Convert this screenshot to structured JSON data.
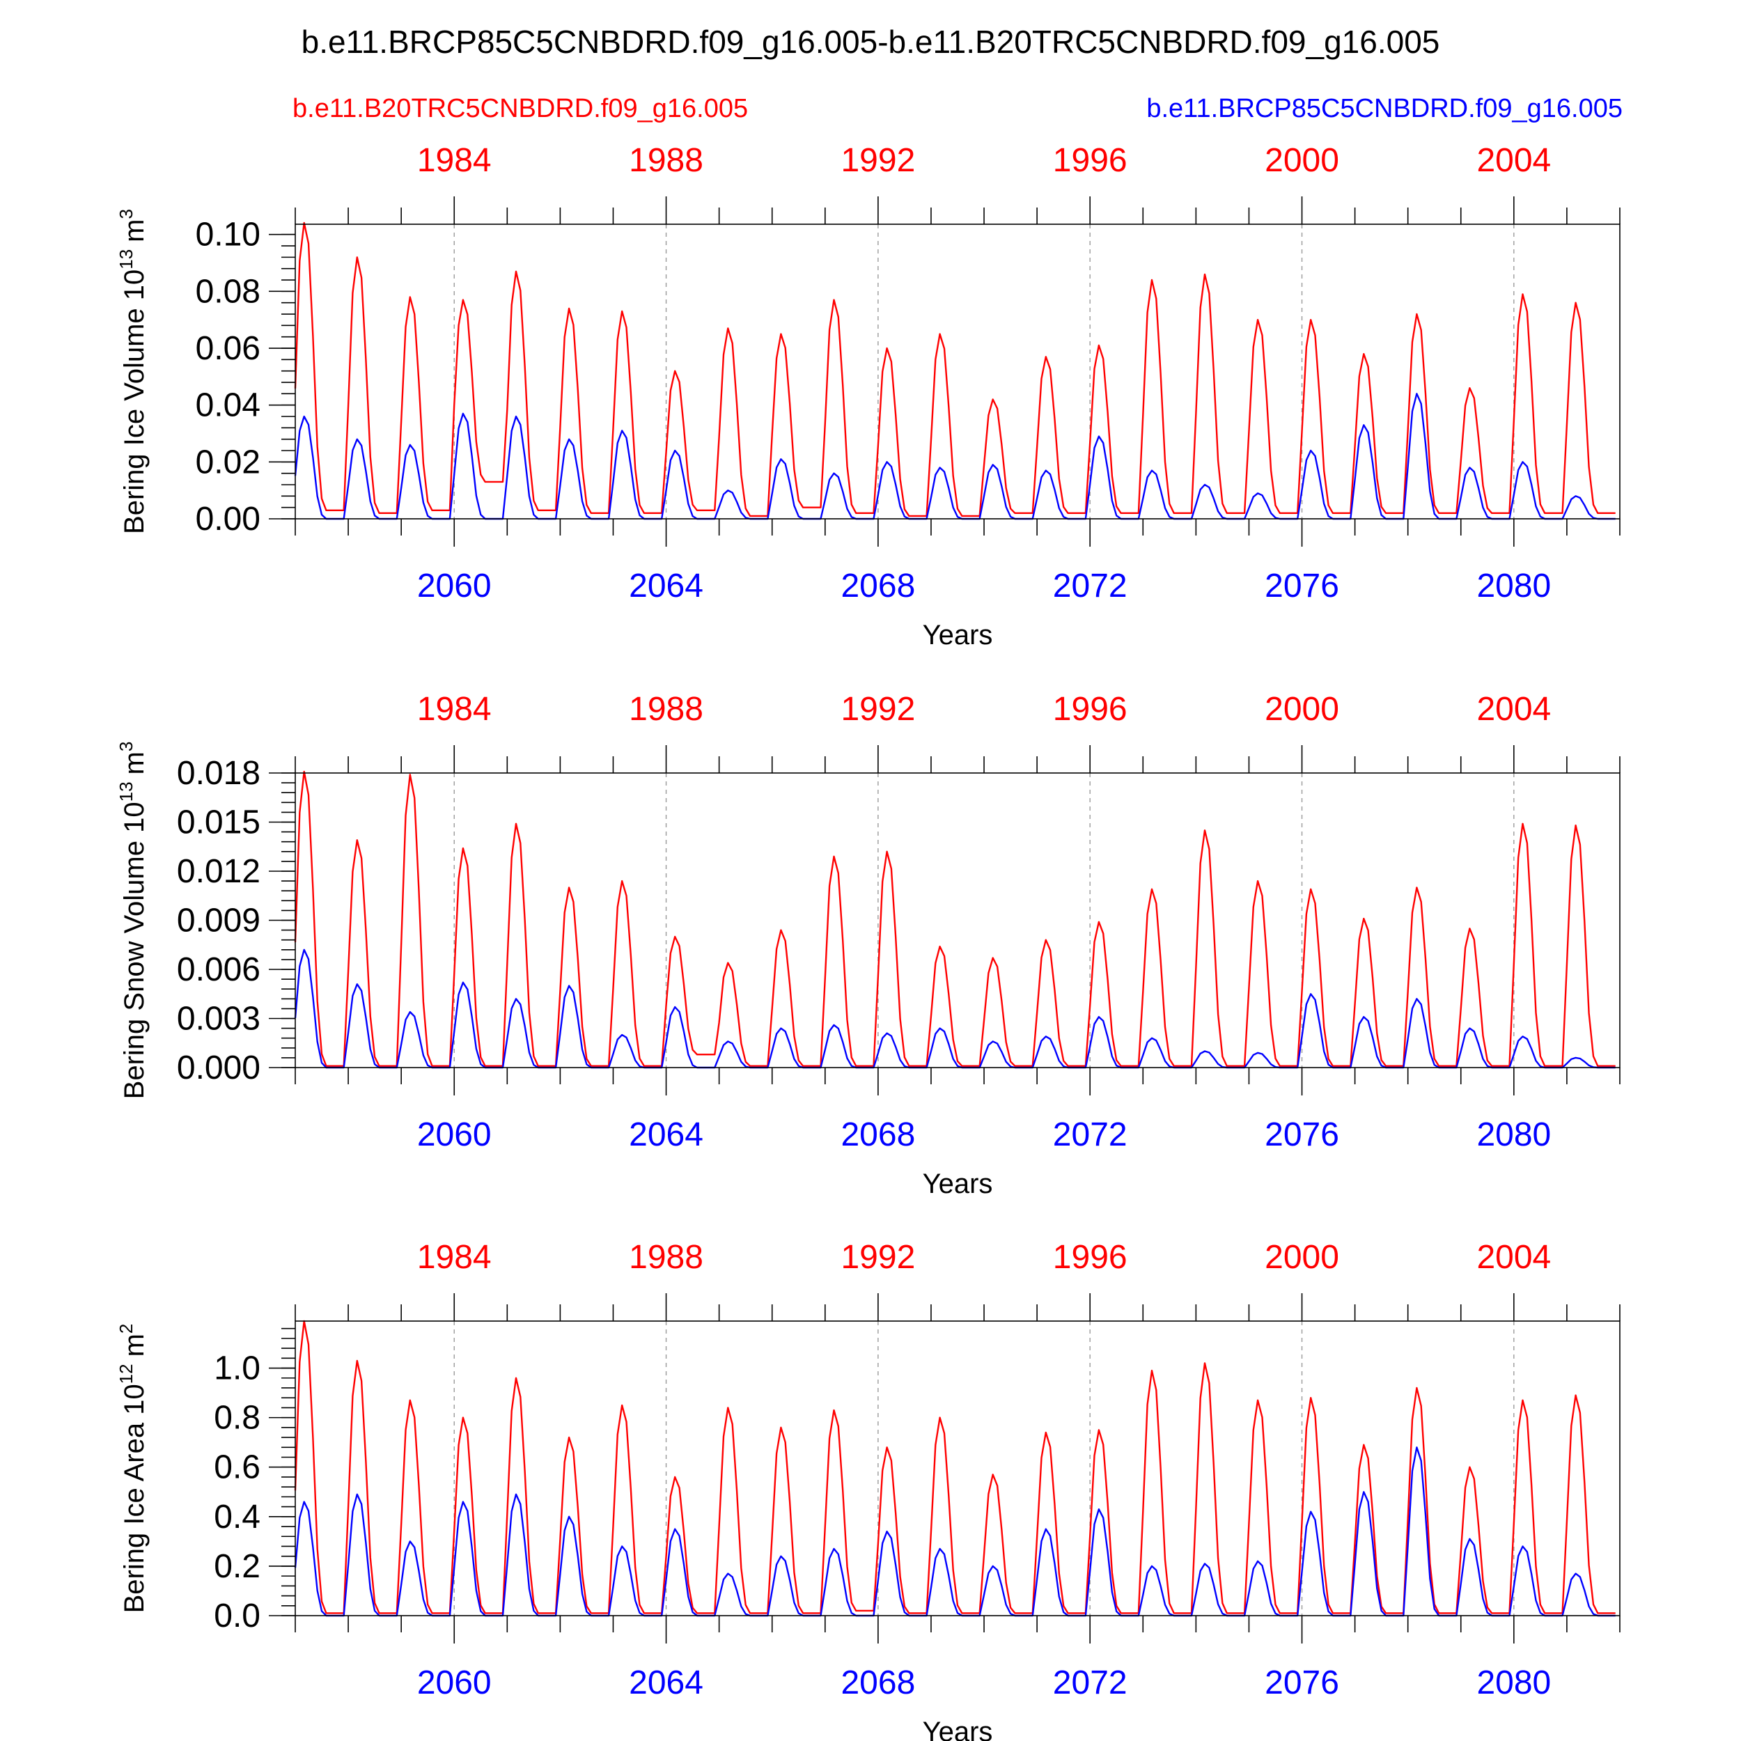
{
  "figure": {
    "title": "b.e11.BRCP85C5CNBDRD.f09_g16.005-b.e11.B20TRC5CNBDRD.f09_g16.005",
    "legend_left": "b.e11.B20TRC5CNBDRD.f09_g16.005",
    "legend_right": "b.e11.BRCP85C5CNBDRD.f09_g16.005"
  },
  "chart_data": [
    {
      "type": "line",
      "title": "",
      "xlabel": "Years",
      "ylabel": "Bering Ice Volume 10",
      "ylabel_sup": "13",
      "ylabel_unit": "m",
      "ylabel_unit_sup": "3",
      "x_top_ticks": [
        "1984",
        "1988",
        "1992",
        "1996",
        "2000",
        "2004"
      ],
      "x_bottom_ticks": [
        "2060",
        "2064",
        "2068",
        "2072",
        "2076",
        "2080"
      ],
      "y_ticks": [
        "0.00",
        "0.02",
        "0.04",
        "0.06",
        "0.08",
        "0.10"
      ],
      "ylim": [
        0,
        0.1036
      ],
      "series": [
        {
          "name": "b.e11.B20TRC5CNBDRD.f09_g16.005",
          "color": "#ff0000",
          "peaks": [
            0.105,
            0.092,
            0.078,
            0.077,
            0.087,
            0.074,
            0.073,
            0.052,
            0.067,
            0.065,
            0.077,
            0.06,
            0.065,
            0.042,
            0.057,
            0.061,
            0.084,
            0.086,
            0.07,
            0.07,
            0.058,
            0.072,
            0.046,
            0.079,
            0.076
          ],
          "troughs": [
            0.003,
            0.002,
            0.003,
            0.013,
            0.003,
            0.002,
            0.002,
            0.003,
            0.001,
            0.004,
            0.002,
            0.001,
            0.001,
            0.002,
            0.002,
            0.002,
            0.002,
            0.002,
            0.002,
            0.002,
            0.002,
            0.002,
            0.002,
            0.002
          ]
        },
        {
          "name": "b.e11.BRCP85C5CNBDRD.f09_g16.005",
          "color": "#0000ff",
          "peaks": [
            0.036,
            0.028,
            0.026,
            0.037,
            0.036,
            0.028,
            0.031,
            0.024,
            0.01,
            0.021,
            0.016,
            0.02,
            0.018,
            0.019,
            0.017,
            0.029,
            0.017,
            0.012,
            0.009,
            0.024,
            0.033,
            0.044,
            0.018,
            0.02,
            0.008
          ],
          "troughs": [
            0,
            0,
            0,
            0,
            0,
            0,
            0,
            0,
            0,
            0,
            0,
            0,
            0,
            0,
            0,
            0,
            0,
            0,
            0,
            0,
            0,
            0,
            0,
            0
          ]
        }
      ]
    },
    {
      "type": "line",
      "title": "",
      "xlabel": "Years",
      "ylabel": "Bering Snow Volume 10",
      "ylabel_sup": "13",
      "ylabel_unit": "m",
      "ylabel_unit_sup": "3",
      "x_top_ticks": [
        "1984",
        "1988",
        "1992",
        "1996",
        "2000",
        "2004"
      ],
      "x_bottom_ticks": [
        "2060",
        "2064",
        "2068",
        "2072",
        "2076",
        "2080"
      ],
      "y_ticks": [
        "0.000",
        "0.003",
        "0.006",
        "0.009",
        "0.012",
        "0.015",
        "0.018"
      ],
      "ylim": [
        0,
        0.018
      ],
      "series": [
        {
          "name": "b.e11.B20TRC5CNBDRD.f09_g16.005",
          "color": "#ff0000",
          "peaks": [
            0.0181,
            0.0139,
            0.0179,
            0.0134,
            0.0149,
            0.011,
            0.0114,
            0.008,
            0.0064,
            0.0084,
            0.0129,
            0.0132,
            0.0074,
            0.0067,
            0.0078,
            0.0089,
            0.0109,
            0.0145,
            0.0114,
            0.0109,
            0.0091,
            0.011,
            0.0085,
            0.0149,
            0.0148
          ],
          "troughs": [
            0.0001,
            0.0001,
            0.0001,
            0.0001,
            0.0001,
            0.0001,
            0.0001,
            0.0008,
            0.0001,
            0.0001,
            0.0001,
            0.0001,
            0.0001,
            0.0001,
            0.0001,
            0.0001,
            0.0001,
            0.0001,
            0.0001,
            0.0001,
            0.0001,
            0.0001,
            0.0001,
            0.0001
          ]
        },
        {
          "name": "b.e11.BRCP85C5CNBDRD.f09_g16.005",
          "color": "#0000ff",
          "peaks": [
            0.0072,
            0.0051,
            0.0034,
            0.0052,
            0.0042,
            0.005,
            0.002,
            0.0037,
            0.0016,
            0.0024,
            0.0026,
            0.0021,
            0.0024,
            0.0016,
            0.0019,
            0.0031,
            0.0018,
            0.001,
            0.0009,
            0.0045,
            0.0031,
            0.0042,
            0.0024,
            0.0019,
            0.0006
          ],
          "troughs": [
            0,
            0,
            0,
            0,
            0,
            0,
            0,
            0,
            0,
            0,
            0,
            0,
            0,
            0,
            0,
            0,
            0,
            0,
            0,
            0,
            0,
            0,
            0,
            0
          ]
        }
      ]
    },
    {
      "type": "line",
      "title": "",
      "xlabel": "Years",
      "ylabel": "Bering Ice Area 10",
      "ylabel_sup": "12",
      "ylabel_unit": "m",
      "ylabel_unit_sup": "2",
      "x_top_ticks": [
        "1984",
        "1988",
        "1992",
        "1996",
        "2000",
        "2004"
      ],
      "x_bottom_ticks": [
        "2060",
        "2064",
        "2068",
        "2072",
        "2076",
        "2080"
      ],
      "y_ticks": [
        "0.0",
        "0.2",
        "0.4",
        "0.6",
        "0.8",
        "1.0"
      ],
      "ylim": [
        0,
        1.19
      ],
      "series": [
        {
          "name": "b.e11.B20TRC5CNBDRD.f09_g16.005",
          "color": "#ff0000",
          "peaks": [
            1.19,
            1.03,
            0.87,
            0.8,
            0.96,
            0.72,
            0.85,
            0.56,
            0.84,
            0.76,
            0.83,
            0.68,
            0.8,
            0.57,
            0.74,
            0.75,
            0.99,
            1.02,
            0.87,
            0.88,
            0.69,
            0.92,
            0.6,
            0.87,
            0.89
          ],
          "troughs": [
            0.01,
            0.01,
            0.01,
            0.01,
            0.01,
            0.01,
            0.01,
            0.01,
            0.01,
            0.01,
            0.02,
            0.01,
            0.01,
            0.01,
            0.01,
            0.01,
            0.01,
            0.01,
            0.01,
            0.01,
            0.01,
            0.01,
            0.01,
            0.01
          ]
        },
        {
          "name": "b.e11.BRCP85C5CNBDRD.f09_g16.005",
          "color": "#0000ff",
          "peaks": [
            0.46,
            0.49,
            0.3,
            0.46,
            0.49,
            0.4,
            0.28,
            0.35,
            0.17,
            0.24,
            0.27,
            0.34,
            0.27,
            0.2,
            0.35,
            0.43,
            0.2,
            0.21,
            0.22,
            0.42,
            0.5,
            0.68,
            0.31,
            0.28,
            0.17
          ],
          "troughs": [
            0,
            0,
            0,
            0,
            0,
            0,
            0,
            0,
            0,
            0,
            0,
            0,
            0,
            0,
            0,
            0,
            0,
            0,
            0,
            0,
            0,
            0,
            0,
            0
          ]
        }
      ]
    }
  ]
}
